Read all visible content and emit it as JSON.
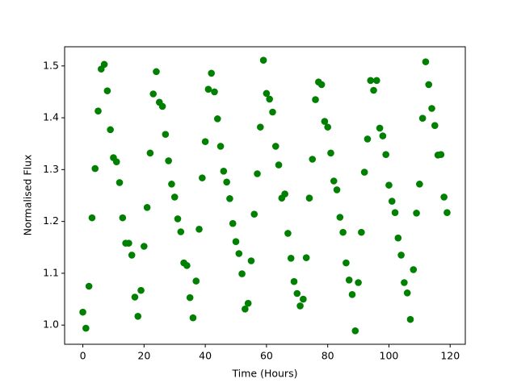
{
  "chart_data": {
    "type": "scatter",
    "xlabel": "Time (Hours)",
    "ylabel": "Normalised Flux",
    "color": "#008000",
    "x": [
      0,
      1,
      2,
      3,
      4,
      5,
      6,
      7,
      8,
      9,
      10,
      11,
      12,
      13,
      14,
      15,
      16,
      17,
      18,
      19,
      20,
      21,
      22,
      23,
      24,
      25,
      26,
      27,
      28,
      29,
      30,
      31,
      32,
      33,
      34,
      35,
      36,
      37,
      38,
      39,
      40,
      41,
      42,
      43,
      44,
      45,
      46,
      47,
      48,
      49,
      50,
      51,
      52,
      53,
      54,
      55,
      56,
      57,
      58,
      59,
      60,
      61,
      62,
      63,
      64,
      65,
      66,
      67,
      68,
      69,
      70,
      71,
      72,
      73,
      74,
      75,
      76,
      77,
      78,
      79,
      80,
      81,
      82,
      83,
      84,
      85,
      86,
      87,
      88,
      89,
      90,
      91,
      92,
      93,
      94,
      95,
      96,
      97,
      98,
      99,
      100,
      101,
      102,
      103,
      104,
      105,
      106,
      107,
      108,
      109,
      110,
      111,
      112,
      113,
      114,
      115,
      116,
      117,
      118,
      119
    ],
    "values": [
      1.025,
      0.994,
      1.075,
      1.207,
      1.302,
      1.413,
      1.494,
      1.503,
      1.452,
      1.377,
      1.323,
      1.315,
      1.275,
      1.207,
      1.158,
      1.158,
      1.135,
      1.054,
      1.017,
      1.067,
      1.152,
      1.227,
      1.332,
      1.446,
      1.489,
      1.43,
      1.422,
      1.368,
      1.317,
      1.272,
      1.247,
      1.205,
      1.18,
      1.12,
      1.115,
      1.053,
      1.014,
      1.085,
      1.185,
      1.284,
      1.354,
      1.455,
      1.486,
      1.45,
      1.398,
      1.345,
      1.297,
      1.276,
      1.244,
      1.196,
      1.161,
      1.138,
      1.099,
      1.031,
      1.042,
      1.124,
      1.214,
      1.292,
      1.382,
      1.511,
      1.447,
      1.436,
      1.411,
      1.345,
      1.309,
      1.245,
      1.253,
      1.177,
      1.129,
      1.084,
      1.061,
      1.037,
      1.05,
      1.13,
      1.245,
      1.32,
      1.435,
      1.469,
      1.464,
      1.393,
      1.382,
      1.332,
      1.278,
      1.261,
      1.208,
      1.179,
      1.12,
      1.087,
      1.059,
      0.989,
      1.082,
      1.179,
      1.295,
      1.359,
      1.472,
      1.453,
      1.472,
      1.38,
      1.365,
      1.329,
      1.27,
      1.239,
      1.217,
      1.168,
      1.135,
      1.082,
      1.062,
      1.011,
      1.107,
      1.216,
      1.272,
      1.399,
      1.508,
      1.464,
      1.418,
      1.385,
      1.328,
      1.329,
      1.247,
      1.217
    ],
    "xlim": [
      -5.95,
      124.95
    ],
    "xticks": [
      0,
      20,
      40,
      60,
      80,
      100,
      120
    ],
    "ylim": [
      0.963,
      1.537
    ],
    "yticks": [
      {
        "value": 1.0,
        "label": "1.0"
      },
      1.1,
      1.2,
      1.3,
      1.4,
      1.5
    ],
    "grid": false
  }
}
